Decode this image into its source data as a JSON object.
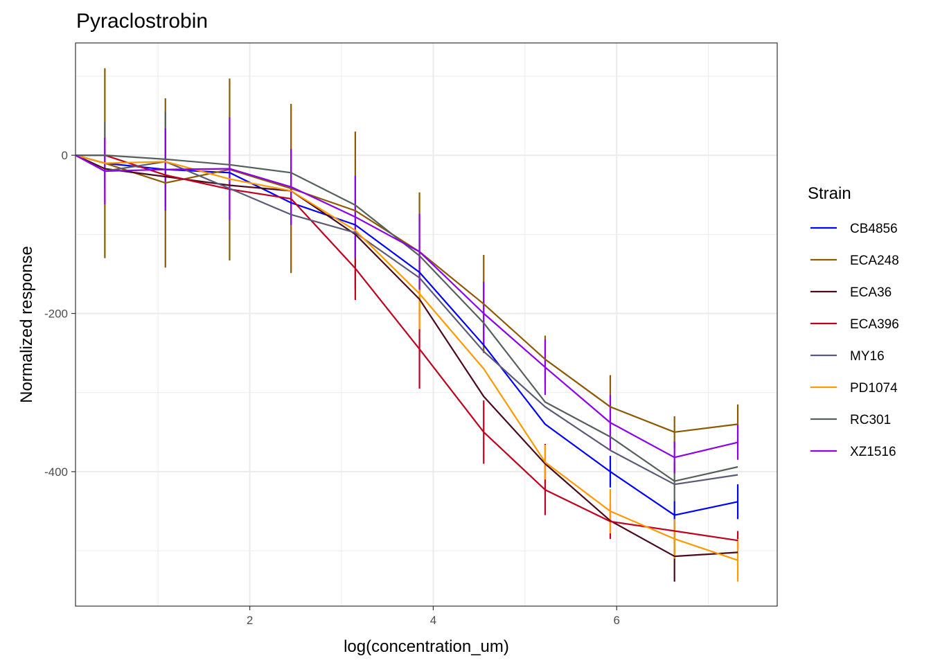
{
  "chart_data": {
    "type": "line",
    "title": "Pyraclostrobin",
    "xlabel": "log(concentration_um)",
    "ylabel": "Normalized response",
    "xlim": [
      0.1,
      7.75
    ],
    "ylim": [
      -570,
      142
    ],
    "x_ticks": [
      2,
      4,
      6
    ],
    "x_tick_labels": [
      "2",
      "4",
      "6"
    ],
    "y_ticks": [
      0,
      -200,
      -400
    ],
    "y_tick_labels": [
      "0",
      "-200",
      "-400"
    ],
    "x_minor_breaks": [
      1,
      3,
      5,
      7
    ],
    "y_minor_breaks": [
      100,
      -100,
      -300,
      -500
    ],
    "grid": true,
    "error_bars": true,
    "legend": {
      "title": "Strain",
      "position": "right"
    },
    "x": [
      0.1,
      0.42,
      1.08,
      1.78,
      2.45,
      3.15,
      3.85,
      4.55,
      5.22,
      5.93,
      6.63,
      7.32
    ],
    "series": [
      {
        "name": "CB4856",
        "color": "#0000ff",
        "values": [
          0,
          -10,
          -18,
          -22,
          -60,
          -88,
          -148,
          -240,
          -340,
          -400,
          -455,
          -438
        ],
        "errors": [
          0,
          0,
          0,
          0,
          0,
          0,
          0,
          0,
          0,
          20,
          18,
          22
        ]
      },
      {
        "name": "ECA248",
        "color": "#8b5a00",
        "values": [
          0,
          -10,
          -35,
          -18,
          -42,
          -70,
          -122,
          -188,
          -258,
          -318,
          -350,
          -340
        ],
        "errors": [
          0,
          120,
          107,
          115,
          107,
          100,
          75,
          62,
          30,
          40,
          20,
          25
        ]
      },
      {
        "name": "ECA36",
        "color": "#4a0a1a",
        "values": [
          0,
          -17,
          -27,
          -38,
          -45,
          -100,
          -182,
          -305,
          -390,
          -462,
          -507,
          -502
        ],
        "errors": [
          0,
          0,
          0,
          0,
          0,
          0,
          0,
          0,
          25,
          0,
          32,
          0
        ]
      },
      {
        "name": "ECA396",
        "color": "#c0001f",
        "values": [
          0,
          0,
          -25,
          -43,
          -55,
          -143,
          -245,
          -350,
          -423,
          -463,
          -475,
          -487
        ],
        "errors": [
          0,
          0,
          0,
          0,
          0,
          40,
          50,
          40,
          32,
          22,
          0,
          12
        ]
      },
      {
        "name": "MY16",
        "color": "#5a5a78",
        "values": [
          0,
          -20,
          -8,
          -42,
          -75,
          -98,
          -155,
          -248,
          -318,
          -373,
          -416,
          -404
        ],
        "errors": [
          0,
          0,
          0,
          0,
          0,
          0,
          0,
          0,
          0,
          0,
          0,
          0
        ]
      },
      {
        "name": "PD1074",
        "color": "#ff9900",
        "values": [
          0,
          -10,
          -8,
          -30,
          -45,
          -95,
          -175,
          -270,
          -388,
          -450,
          -485,
          -512
        ],
        "errors": [
          0,
          0,
          0,
          0,
          0,
          0,
          45,
          0,
          22,
          28,
          25,
          27
        ]
      },
      {
        "name": "RC301",
        "color": "#55605a",
        "values": [
          0,
          0,
          -5,
          -12,
          -22,
          -63,
          -127,
          -212,
          -312,
          -356,
          -412,
          -394
        ],
        "errors": [
          0,
          42,
          60,
          0,
          0,
          0,
          0,
          0,
          0,
          0,
          25,
          0
        ]
      },
      {
        "name": "XZ1516",
        "color": "#8b00e8",
        "values": [
          0,
          -20,
          -18,
          -17,
          -40,
          -78,
          -122,
          -200,
          -268,
          -338,
          -382,
          -363
        ],
        "errors": [
          0,
          42,
          52,
          65,
          48,
          52,
          48,
          40,
          35,
          35,
          20,
          22
        ]
      }
    ]
  }
}
